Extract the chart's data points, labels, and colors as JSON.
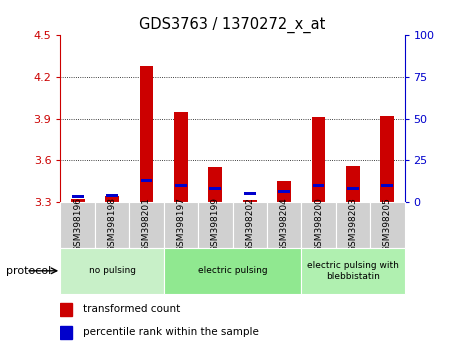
{
  "title": "GDS3763 / 1370272_x_at",
  "samples": [
    "GSM398196",
    "GSM398198",
    "GSM398201",
    "GSM398197",
    "GSM398199",
    "GSM398202",
    "GSM398204",
    "GSM398200",
    "GSM398203",
    "GSM398205"
  ],
  "transformed_count": [
    3.32,
    3.34,
    4.28,
    3.95,
    3.55,
    3.31,
    3.45,
    3.91,
    3.56,
    3.92
  ],
  "percentile_rank": [
    3,
    4,
    13,
    10,
    8,
    5,
    6,
    10,
    8,
    10
  ],
  "ylim_left": [
    3.3,
    4.5
  ],
  "ylim_right": [
    0,
    100
  ],
  "yticks_left": [
    3.3,
    3.6,
    3.9,
    4.2,
    4.5
  ],
  "yticks_right": [
    0,
    25,
    50,
    75,
    100
  ],
  "groups": [
    {
      "label": "no pulsing",
      "start": 0,
      "end": 3,
      "color": "#c8f0c8"
    },
    {
      "label": "electric pulsing",
      "start": 3,
      "end": 7,
      "color": "#90e890"
    },
    {
      "label": "electric pulsing with\nblebbistatin",
      "start": 7,
      "end": 10,
      "color": "#b0f0b0"
    }
  ],
  "bar_color_red": "#cc0000",
  "bar_color_blue": "#0000cc",
  "bar_width": 0.4,
  "grid_color": "#000000",
  "bg_color": "#ffffff",
  "tick_color_left": "#cc0000",
  "tick_color_right": "#0000cc",
  "base_value": 3.3,
  "sample_box_color": "#d0d0d0",
  "sample_box_edge": "#ffffff"
}
